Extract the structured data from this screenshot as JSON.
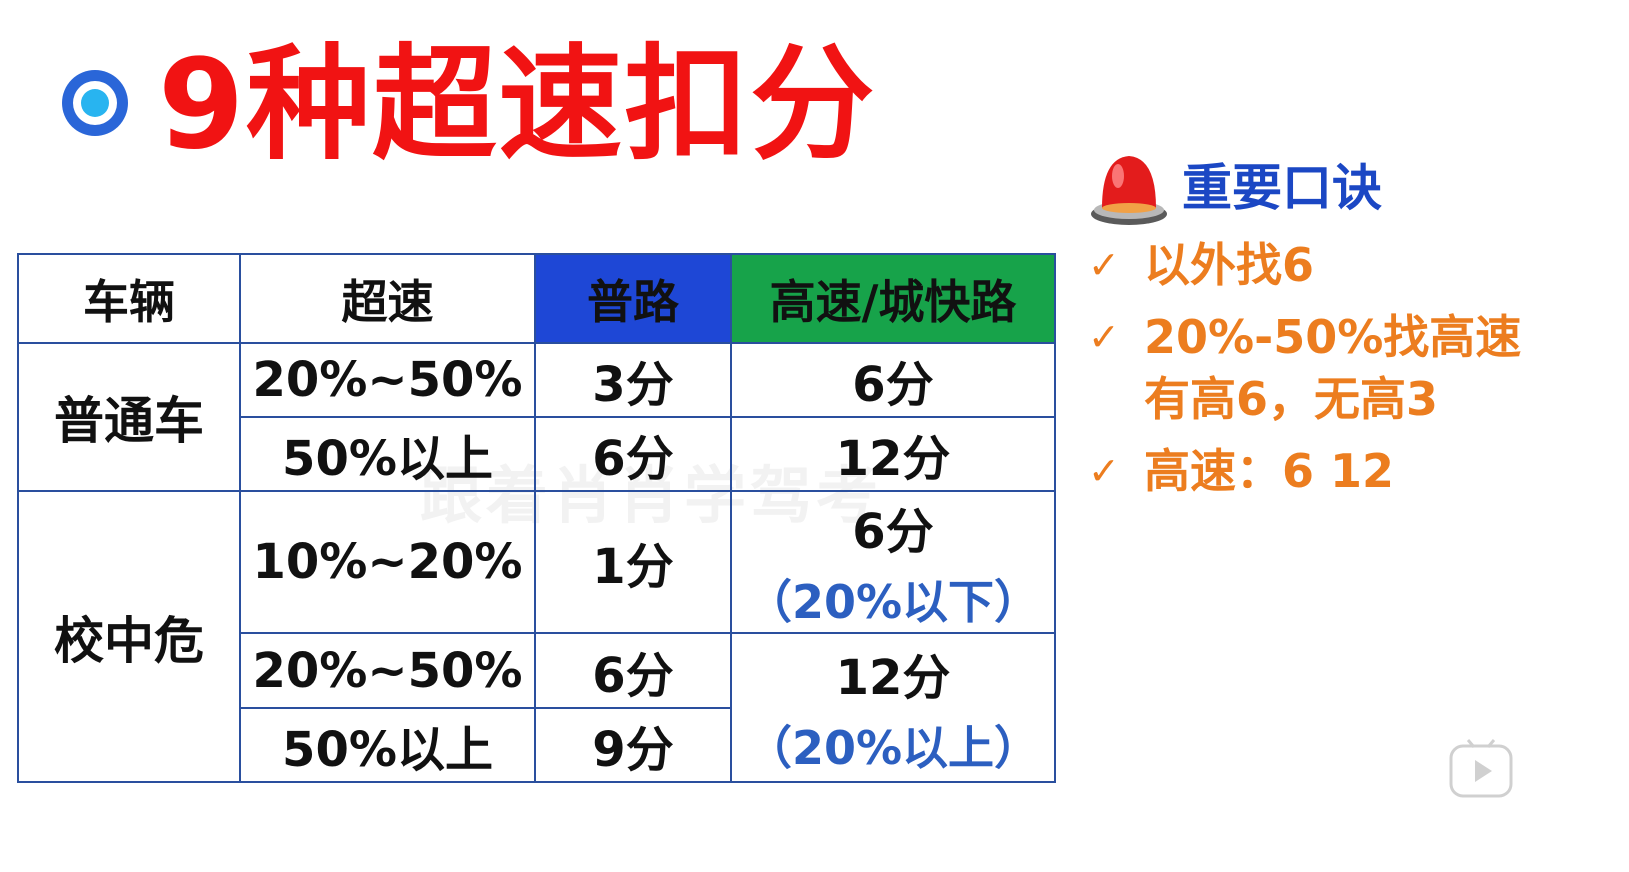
{
  "title": "9种超速扣分",
  "table": {
    "headers": [
      "车辆",
      "超速",
      "普路",
      "高速/城快路"
    ],
    "groups": [
      {
        "vehicle": "普通车",
        "rows": [
          {
            "speed": "20%~50%",
            "normal": "3分",
            "highway": "6分"
          },
          {
            "speed": "50%以上",
            "normal": "6分",
            "highway": "12分"
          }
        ]
      },
      {
        "vehicle": "校中危",
        "rows": [
          {
            "speed": "10%~20%",
            "normal": "1分",
            "highway": "6分",
            "highway_note": "（20%以下）"
          },
          {
            "speed": "20%~50%",
            "normal": "6分",
            "highway": "12分",
            "highway_note": "（20%以上）"
          },
          {
            "speed": "50%以上",
            "normal": "9分"
          }
        ]
      }
    ]
  },
  "watermark": "跟着肖肖学驾考",
  "sidebar": {
    "title": "重要口诀",
    "tips": [
      {
        "line1": "以外找6"
      },
      {
        "line1": "20%-50%找高速",
        "line2": "有高6，无高3"
      },
      {
        "line1": "高速：6 12"
      }
    ]
  },
  "colors": {
    "title": "#f11313",
    "header_normal": "#1e47d6",
    "header_highway": "#17a34a",
    "tips": "#ec7d1f",
    "note": "#2c5fc0"
  },
  "icons": [
    "target-icon",
    "siren-icon",
    "check-icon",
    "play-logo-icon"
  ]
}
